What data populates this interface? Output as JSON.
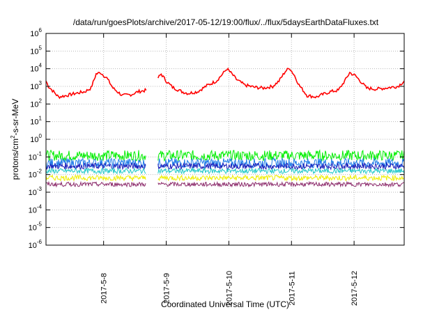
{
  "chart_data": {
    "type": "line",
    "title": "/data/run/goesPlots/archive/2017-05-12/19:00/flux/../flux/5daysEarthDataFluxes.txt",
    "xlabel": "Coordinated Universal Time (UTC)",
    "ylabel": {
      "prefix": "protons/cm",
      "sup": "2",
      "suffix": "-s-sr-MeV"
    },
    "yscale": "log",
    "ylim_exp": [
      -6,
      6
    ],
    "ytick_exponents": [
      -6,
      -5,
      -4,
      -3,
      -2,
      -1,
      0,
      1,
      2,
      3,
      4,
      5,
      6
    ],
    "xlim_days": [
      7.08,
      12.8
    ],
    "xticks": [
      {
        "label": "2017-5-8",
        "day": 8
      },
      {
        "label": "2017-5-9",
        "day": 9
      },
      {
        "label": "2017-5-10",
        "day": 10
      },
      {
        "label": "2017-5-11",
        "day": 11
      },
      {
        "label": "2017-5-12",
        "day": 12
      }
    ],
    "grid": true,
    "data_gap_days": [
      8.68,
      8.87
    ],
    "series": [
      {
        "color": "#ff0000",
        "points": [
          [
            7.08,
            2000
          ],
          [
            7.12,
            1000
          ],
          [
            7.2,
            500
          ],
          [
            7.28,
            250
          ],
          [
            7.4,
            300
          ],
          [
            7.55,
            400
          ],
          [
            7.7,
            500
          ],
          [
            7.8,
            800
          ],
          [
            7.88,
            5000
          ],
          [
            7.95,
            6000
          ],
          [
            8.05,
            3000
          ],
          [
            8.15,
            800
          ],
          [
            8.3,
            300
          ],
          [
            8.45,
            350
          ],
          [
            8.55,
            500
          ],
          [
            8.68,
            600
          ],
          [
            8.87,
            3000
          ],
          [
            8.92,
            5000
          ],
          [
            9.0,
            2000
          ],
          [
            9.1,
            900
          ],
          [
            9.25,
            500
          ],
          [
            9.35,
            400
          ],
          [
            9.5,
            500
          ],
          [
            9.65,
            1100
          ],
          [
            9.8,
            2000
          ],
          [
            9.9,
            5000
          ],
          [
            9.97,
            10000
          ],
          [
            10.05,
            5000
          ],
          [
            10.12,
            2500
          ],
          [
            10.25,
            1200
          ],
          [
            10.4,
            900
          ],
          [
            10.55,
            800
          ],
          [
            10.7,
            1000
          ],
          [
            10.8,
            2000
          ],
          [
            10.9,
            7000
          ],
          [
            10.97,
            11000
          ],
          [
            11.05,
            4000
          ],
          [
            11.12,
            1200
          ],
          [
            11.25,
            300
          ],
          [
            11.4,
            250
          ],
          [
            11.5,
            350
          ],
          [
            11.62,
            500
          ],
          [
            11.75,
            600
          ],
          [
            11.85,
            2000
          ],
          [
            11.93,
            6000
          ],
          [
            12.02,
            4000
          ],
          [
            12.1,
            2000
          ],
          [
            12.2,
            800
          ],
          [
            12.35,
            700
          ],
          [
            12.5,
            800
          ],
          [
            12.6,
            900
          ],
          [
            12.7,
            1000
          ],
          [
            12.8,
            2000
          ]
        ]
      },
      {
        "color": "#00ee00",
        "level": 0.12,
        "noise": 0.6
      },
      {
        "color": "#1e7be8",
        "level": 0.045,
        "noise": 0.55
      },
      {
        "color": "#1a1ab8",
        "level": 0.03,
        "noise": 0.35
      },
      {
        "color": "#20c8c8",
        "level": 0.016,
        "noise": 0.3
      },
      {
        "color": "#eeee00",
        "level": 0.0065,
        "noise": 0.3
      },
      {
        "color": "#8b2a6a",
        "level": 0.0028,
        "noise": 0.25
      }
    ]
  }
}
